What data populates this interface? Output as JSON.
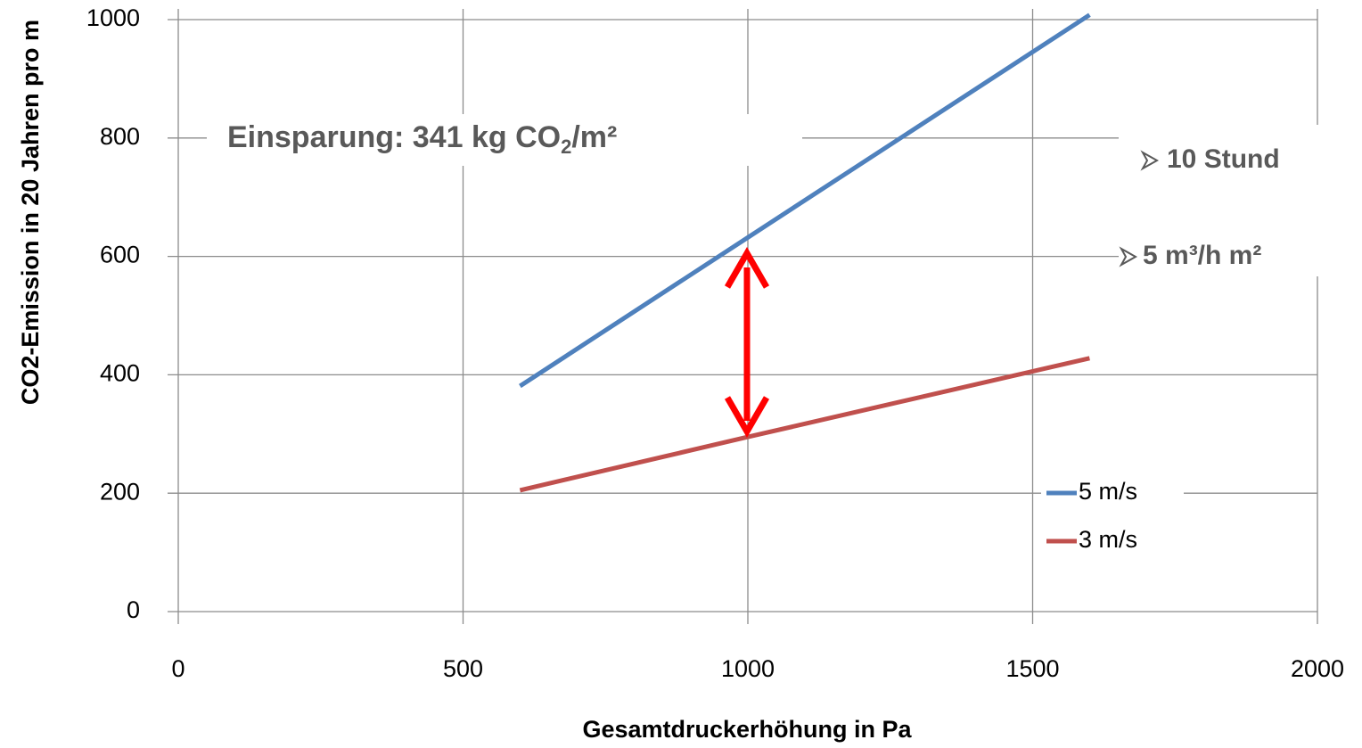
{
  "chart_data": {
    "type": "line",
    "x_label": "Gesamtdruckerhöhung in Pa",
    "y_label": "CO2-Emission in 20 Jahren pro m",
    "x": [
      600,
      1000,
      1600
    ],
    "series": [
      {
        "name": "5 m/s",
        "color": "#4f81bd",
        "values": [
          381,
          632,
          1008
        ]
      },
      {
        "name": "3 m/s",
        "color": "#c0504d",
        "values": [
          205,
          295,
          428
        ]
      }
    ],
    "xlim": [
      0,
      2000
    ],
    "xticks": [
      0,
      500,
      1000,
      1500,
      2000
    ],
    "ylim": [
      0,
      1000
    ],
    "yticks": [
      0,
      200,
      400,
      600,
      800,
      1000
    ],
    "grid": true,
    "legend": "right",
    "annotation": {
      "main": "Einsparung: 341 kg CO",
      "sub": "2",
      "tail": "/m²"
    },
    "notes": [
      "10 Stund",
      "5 m³/h m²"
    ]
  }
}
